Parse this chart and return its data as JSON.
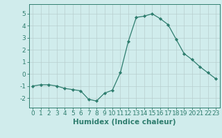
{
  "x": [
    0,
    1,
    2,
    3,
    4,
    5,
    6,
    7,
    8,
    9,
    10,
    11,
    12,
    13,
    14,
    15,
    16,
    17,
    18,
    19,
    20,
    21,
    22,
    23
  ],
  "y": [
    -1.0,
    -0.9,
    -0.9,
    -1.0,
    -1.2,
    -1.3,
    -1.4,
    -2.1,
    -2.25,
    -1.6,
    -1.35,
    0.1,
    2.7,
    4.7,
    4.8,
    5.0,
    4.6,
    4.1,
    2.9,
    1.7,
    1.2,
    0.6,
    0.1,
    -0.4
  ],
  "line_color": "#2e7d6e",
  "marker": "D",
  "marker_size": 2.2,
  "bg_color": "#d0ecec",
  "title": "",
  "xlabel": "Humidex (Indice chaleur)",
  "ylabel": "",
  "xlim": [
    -0.5,
    23.5
  ],
  "ylim": [
    -2.8,
    5.8
  ],
  "yticks": [
    -2,
    -1,
    0,
    1,
    2,
    3,
    4,
    5
  ],
  "xticks": [
    0,
    1,
    2,
    3,
    4,
    5,
    6,
    7,
    8,
    9,
    10,
    11,
    12,
    13,
    14,
    15,
    16,
    17,
    18,
    19,
    20,
    21,
    22,
    23
  ],
  "tick_color": "#2e7d6e",
  "label_color": "#2e7d6e",
  "xlabel_fontsize": 7.5,
  "tick_fontsize": 6.5,
  "grid_color": "#b8cece"
}
